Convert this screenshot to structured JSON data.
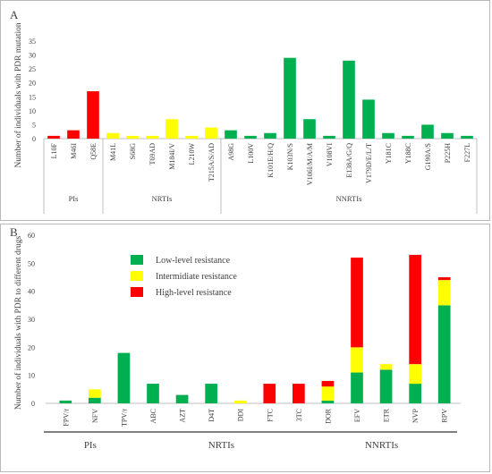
{
  "chart_data": [
    {
      "type": "bar",
      "panel_label": "A",
      "ylabel": "Number of individuals with  PDR mutation",
      "ylim": [
        0,
        35
      ],
      "yticks": [
        0,
        5,
        10,
        15,
        20,
        25,
        30,
        35
      ],
      "grid": false,
      "categories": [
        "L10F",
        "M46I",
        "Q58E",
        "M41L",
        "S68G",
        "T69AD",
        "M184I/V",
        "L210W",
        "T215A/S/AD",
        "A98G",
        "L100V",
        "K101E/H/Q",
        "K103N/S",
        "V106I/M/A/M",
        "V108VI",
        "E138A/G/Q",
        "V179D/E/L/T",
        "Y181C",
        "Y188C",
        "G190A/S",
        "P225H",
        "F227L"
      ],
      "values": [
        1,
        3,
        17,
        2,
        1,
        1,
        7,
        1,
        4,
        3,
        1,
        2,
        29,
        7,
        1,
        28,
        14,
        2,
        1,
        5,
        2,
        1
      ],
      "bar_colors": [
        "#ff0000",
        "#ff0000",
        "#ff0000",
        "#ffff00",
        "#ffff00",
        "#ffff00",
        "#ffff00",
        "#ffff00",
        "#ffff00",
        "#00b050",
        "#00b050",
        "#00b050",
        "#00b050",
        "#00b050",
        "#00b050",
        "#00b050",
        "#00b050",
        "#00b050",
        "#00b050",
        "#00b050",
        "#00b050",
        "#00b050"
      ],
      "groups": [
        {
          "label": "PIs",
          "start": 0,
          "end": 2
        },
        {
          "label": "NRTIs",
          "start": 3,
          "end": 8
        },
        {
          "label": "NNRTIs",
          "start": 9,
          "end": 21
        }
      ]
    },
    {
      "type": "bar",
      "stacked": true,
      "panel_label": "B",
      "ylabel": "Number of individuals with  PDR to different drugs",
      "ylim": [
        0,
        60
      ],
      "yticks": [
        0,
        10,
        20,
        30,
        40,
        50,
        60
      ],
      "grid": false,
      "categories": [
        "FPV/r",
        "NFV",
        "TPV/r",
        "ABC",
        "AZT",
        "D4T",
        "DDI",
        "FTC",
        "3TC",
        "DOR",
        "EFV",
        "ETR",
        "NVP",
        "RPV"
      ],
      "series": [
        {
          "name": "Low-level resistance",
          "color": "#00b050",
          "values": [
            1,
            2,
            18,
            7,
            3,
            7,
            0,
            0,
            0,
            1,
            11,
            12,
            7,
            35
          ]
        },
        {
          "name": "Intermidiate resistance",
          "color": "#ffff00",
          "values": [
            0,
            3,
            0,
            0,
            0,
            0,
            1,
            0,
            0,
            5,
            9,
            2,
            7,
            9
          ]
        },
        {
          "name": "High-level resistance",
          "color": "#ff0000",
          "values": [
            0,
            0,
            0,
            0,
            0,
            0,
            0,
            7,
            7,
            2,
            32,
            0,
            39,
            1
          ]
        }
      ],
      "legend_position": "top-left",
      "groups": [
        {
          "label": "PIs",
          "start": 0,
          "end": 2
        },
        {
          "label": "NRTIs",
          "start": 3,
          "end": 8
        },
        {
          "label": "NNRTIs",
          "start": 9,
          "end": 13
        }
      ]
    }
  ]
}
